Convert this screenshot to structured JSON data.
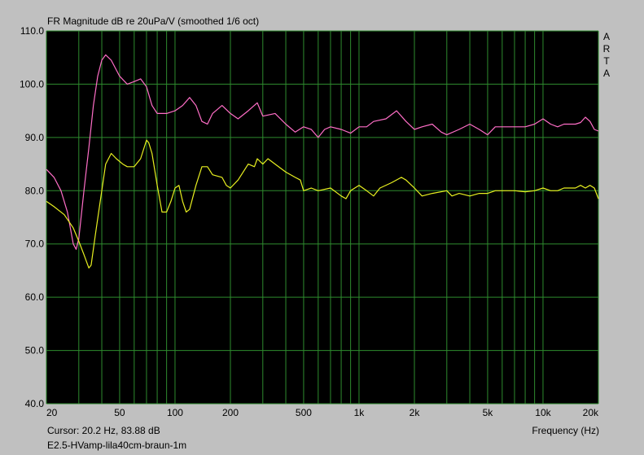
{
  "title": "FR Magnitude dB re 20uPa/V (smoothed 1/6 oct)",
  "brand_letters": [
    "A",
    "R",
    "T",
    "A"
  ],
  "cursor_text": "Cursor: 20.2 Hz, 83.88 dB",
  "file_name": "E2.5-HVamp-lila40cm-braun-1m",
  "colors": {
    "background": "#c0c0c0",
    "plot_bg": "#000000",
    "grid": "#2e8b2e",
    "series_1": "#ff6ec7",
    "series_2": "#e8f020"
  },
  "chart_data": {
    "type": "line",
    "title": "FR Magnitude dB re 20uPa/V (smoothed 1/6 oct)",
    "xlabel": "Frequency (Hz)",
    "ylabel": "",
    "x_scale": "log",
    "xlim": [
      20,
      20000
    ],
    "ylim": [
      40,
      110
    ],
    "grid": true,
    "legend": "none",
    "x_ticks": [
      {
        "v": 20,
        "label": "20"
      },
      {
        "v": 50,
        "label": "50"
      },
      {
        "v": 100,
        "label": "100"
      },
      {
        "v": 200,
        "label": "200"
      },
      {
        "v": 500,
        "label": "500"
      },
      {
        "v": 1000,
        "label": "1k"
      },
      {
        "v": 2000,
        "label": "2k"
      },
      {
        "v": 5000,
        "label": "5k"
      },
      {
        "v": 10000,
        "label": "10k"
      },
      {
        "v": 20000,
        "label": "20k"
      }
    ],
    "y_ticks": [
      {
        "v": 110,
        "label": "110.0"
      },
      {
        "v": 100,
        "label": "100.0"
      },
      {
        "v": 90,
        "label": "90.0"
      },
      {
        "v": 80,
        "label": "80.0"
      },
      {
        "v": 70,
        "label": "70.0"
      },
      {
        "v": 60,
        "label": "60.0"
      },
      {
        "v": 50,
        "label": "50.0"
      },
      {
        "v": 40,
        "label": "40.0"
      }
    ],
    "series": [
      {
        "color": "#ff6ec7",
        "points": [
          [
            20,
            84
          ],
          [
            22,
            82.5
          ],
          [
            24,
            80
          ],
          [
            26,
            76
          ],
          [
            28,
            70
          ],
          [
            29,
            69
          ],
          [
            30,
            71
          ],
          [
            32,
            80
          ],
          [
            34,
            88
          ],
          [
            36,
            96
          ],
          [
            38,
            101.5
          ],
          [
            40,
            104.5
          ],
          [
            42,
            105.5
          ],
          [
            45,
            104.5
          ],
          [
            50,
            101.5
          ],
          [
            55,
            100
          ],
          [
            60,
            100.5
          ],
          [
            65,
            101
          ],
          [
            70,
            99.5
          ],
          [
            75,
            96
          ],
          [
            80,
            94.5
          ],
          [
            90,
            94.5
          ],
          [
            100,
            95
          ],
          [
            110,
            96
          ],
          [
            120,
            97.5
          ],
          [
            130,
            96
          ],
          [
            140,
            93
          ],
          [
            150,
            92.5
          ],
          [
            160,
            94.5
          ],
          [
            180,
            96
          ],
          [
            200,
            94.5
          ],
          [
            220,
            93.5
          ],
          [
            250,
            95
          ],
          [
            280,
            96.5
          ],
          [
            300,
            94
          ],
          [
            350,
            94.5
          ],
          [
            400,
            92.5
          ],
          [
            450,
            91
          ],
          [
            500,
            92
          ],
          [
            550,
            91.5
          ],
          [
            600,
            90
          ],
          [
            650,
            91.5
          ],
          [
            700,
            92
          ],
          [
            800,
            91.5
          ],
          [
            900,
            90.8
          ],
          [
            1000,
            92
          ],
          [
            1100,
            92
          ],
          [
            1200,
            93
          ],
          [
            1400,
            93.5
          ],
          [
            1600,
            95
          ],
          [
            1800,
            93
          ],
          [
            2000,
            91.5
          ],
          [
            2200,
            92
          ],
          [
            2500,
            92.5
          ],
          [
            2800,
            91
          ],
          [
            3000,
            90.5
          ],
          [
            3500,
            91.5
          ],
          [
            4000,
            92.5
          ],
          [
            4500,
            91.5
          ],
          [
            5000,
            90.5
          ],
          [
            5500,
            92
          ],
          [
            6000,
            92
          ],
          [
            7000,
            92
          ],
          [
            8000,
            92
          ],
          [
            9000,
            92.5
          ],
          [
            10000,
            93.5
          ],
          [
            11000,
            92.5
          ],
          [
            12000,
            92
          ],
          [
            13000,
            92.5
          ],
          [
            14000,
            92.5
          ],
          [
            15000,
            92.5
          ],
          [
            16000,
            92.8
          ],
          [
            17000,
            93.8
          ],
          [
            18000,
            93
          ],
          [
            19000,
            91.5
          ],
          [
            20000,
            91.2
          ]
        ]
      },
      {
        "color": "#e8f020",
        "points": [
          [
            20,
            78
          ],
          [
            22,
            77
          ],
          [
            25,
            75.5
          ],
          [
            28,
            73
          ],
          [
            30,
            70.5
          ],
          [
            32,
            68
          ],
          [
            34,
            65.5
          ],
          [
            35,
            66
          ],
          [
            37,
            72
          ],
          [
            40,
            80
          ],
          [
            42,
            85
          ],
          [
            45,
            87
          ],
          [
            48,
            86
          ],
          [
            52,
            85
          ],
          [
            55,
            84.5
          ],
          [
            60,
            84.5
          ],
          [
            65,
            86
          ],
          [
            70,
            89.5
          ],
          [
            72,
            89
          ],
          [
            75,
            87
          ],
          [
            80,
            81
          ],
          [
            85,
            76
          ],
          [
            90,
            76
          ],
          [
            95,
            78
          ],
          [
            100,
            80.5
          ],
          [
            105,
            81
          ],
          [
            110,
            78
          ],
          [
            115,
            76
          ],
          [
            120,
            76.5
          ],
          [
            130,
            81
          ],
          [
            140,
            84.5
          ],
          [
            150,
            84.5
          ],
          [
            160,
            83
          ],
          [
            180,
            82.5
          ],
          [
            190,
            81
          ],
          [
            200,
            80.5
          ],
          [
            220,
            82
          ],
          [
            250,
            85
          ],
          [
            270,
            84.5
          ],
          [
            280,
            86
          ],
          [
            300,
            85
          ],
          [
            320,
            86
          ],
          [
            350,
            85
          ],
          [
            400,
            83.5
          ],
          [
            450,
            82.5
          ],
          [
            480,
            82
          ],
          [
            500,
            80
          ],
          [
            550,
            80.5
          ],
          [
            600,
            80
          ],
          [
            700,
            80.5
          ],
          [
            800,
            79
          ],
          [
            850,
            78.5
          ],
          [
            900,
            80
          ],
          [
            1000,
            81
          ],
          [
            1100,
            80
          ],
          [
            1200,
            79
          ],
          [
            1300,
            80.5
          ],
          [
            1500,
            81.5
          ],
          [
            1700,
            82.5
          ],
          [
            1800,
            82
          ],
          [
            2000,
            80.5
          ],
          [
            2200,
            79
          ],
          [
            2500,
            79.5
          ],
          [
            3000,
            80
          ],
          [
            3200,
            79
          ],
          [
            3500,
            79.5
          ],
          [
            4000,
            79
          ],
          [
            4500,
            79.5
          ],
          [
            5000,
            79.5
          ],
          [
            5500,
            80
          ],
          [
            6000,
            80
          ],
          [
            7000,
            80
          ],
          [
            8000,
            79.8
          ],
          [
            9000,
            80
          ],
          [
            10000,
            80.5
          ],
          [
            11000,
            80
          ],
          [
            12000,
            80
          ],
          [
            13000,
            80.5
          ],
          [
            14000,
            80.5
          ],
          [
            15000,
            80.5
          ],
          [
            16000,
            81
          ],
          [
            17000,
            80.5
          ],
          [
            18000,
            81
          ],
          [
            19000,
            80.5
          ],
          [
            20000,
            78.5
          ]
        ]
      }
    ]
  }
}
